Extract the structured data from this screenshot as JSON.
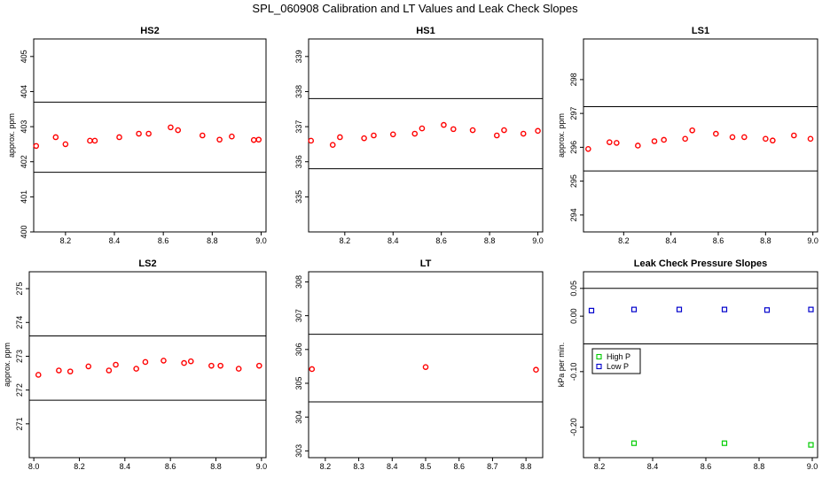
{
  "title": "SPL_060908  Calibration and LT Values and Leak Check Slopes",
  "chart_data": [
    {
      "type": "scatter",
      "title": "HS2",
      "ylabel": "approx. ppm",
      "xlim": [
        8.07,
        9.02
      ],
      "ylim": [
        400,
        405.5
      ],
      "xticks": [
        8.2,
        8.4,
        8.6,
        8.8,
        9.0
      ],
      "xtick_labels": [
        "8.2",
        "8.4",
        "8.6",
        "8.8",
        "9.0"
      ],
      "yticks": [
        400,
        401,
        402,
        403,
        404,
        405
      ],
      "ytick_labels": [
        "400",
        "401",
        "402",
        "403",
        "404",
        "405"
      ],
      "hlines": [
        403.7,
        401.7
      ],
      "series": [
        {
          "color": "#ff0000",
          "marker": "circle",
          "x": [
            8.08,
            8.16,
            8.2,
            8.3,
            8.32,
            8.42,
            8.5,
            8.54,
            8.63,
            8.66,
            8.76,
            8.83,
            8.88,
            8.97,
            8.99
          ],
          "y": [
            402.45,
            402.7,
            402.5,
            402.6,
            402.6,
            402.7,
            402.8,
            402.8,
            402.98,
            402.9,
            402.75,
            402.63,
            402.72,
            402.62,
            402.63
          ]
        }
      ]
    },
    {
      "type": "scatter",
      "title": "HS1",
      "ylabel": "",
      "xlim": [
        8.05,
        9.02
      ],
      "ylim": [
        334,
        339.5
      ],
      "xticks": [
        8.2,
        8.4,
        8.6,
        8.8,
        9.0
      ],
      "xtick_labels": [
        "8.2",
        "8.4",
        "8.6",
        "8.8",
        "9.0"
      ],
      "yticks": [
        335,
        336,
        337,
        338,
        339
      ],
      "ytick_labels": [
        "335",
        "336",
        "337",
        "338",
        "339"
      ],
      "hlines": [
        337.8,
        335.8
      ],
      "series": [
        {
          "color": "#ff0000",
          "marker": "circle",
          "x": [
            8.06,
            8.15,
            8.18,
            8.28,
            8.32,
            8.4,
            8.49,
            8.52,
            8.61,
            8.65,
            8.73,
            8.83,
            8.86,
            8.94,
            9.0
          ],
          "y": [
            336.6,
            336.48,
            336.7,
            336.67,
            336.75,
            336.78,
            336.8,
            336.95,
            337.05,
            336.93,
            336.9,
            336.75,
            336.9,
            336.8,
            336.88
          ]
        }
      ]
    },
    {
      "type": "scatter",
      "title": "LS1",
      "ylabel": "approx. ppm",
      "xlim": [
        8.03,
        9.02
      ],
      "ylim": [
        293.5,
        299.2
      ],
      "xticks": [
        8.2,
        8.4,
        8.6,
        8.8,
        9.0
      ],
      "xtick_labels": [
        "8.2",
        "8.4",
        "8.6",
        "8.8",
        "9.0"
      ],
      "yticks": [
        294,
        295,
        296,
        297,
        298
      ],
      "ytick_labels": [
        "294",
        "295",
        "296",
        "297",
        "298"
      ],
      "hlines": [
        297.2,
        295.3
      ],
      "series": [
        {
          "color": "#ff0000",
          "marker": "circle",
          "x": [
            8.05,
            8.14,
            8.17,
            8.26,
            8.33,
            8.37,
            8.46,
            8.49,
            8.59,
            8.66,
            8.71,
            8.8,
            8.83,
            8.92,
            8.99
          ],
          "y": [
            295.95,
            296.15,
            296.13,
            296.05,
            296.18,
            296.22,
            296.25,
            296.5,
            296.4,
            296.3,
            296.3,
            296.25,
            296.2,
            296.35,
            296.25
          ]
        }
      ]
    },
    {
      "type": "scatter",
      "title": "LS2",
      "ylabel": "approx. ppm",
      "xlim": [
        7.98,
        9.02
      ],
      "ylim": [
        270,
        275.5
      ],
      "xticks": [
        8.0,
        8.2,
        8.4,
        8.6,
        8.8,
        9.0
      ],
      "xtick_labels": [
        "8.0",
        "8.2",
        "8.4",
        "8.6",
        "8.8",
        "9.0"
      ],
      "yticks": [
        271,
        272,
        273,
        274,
        275
      ],
      "ytick_labels": [
        "271",
        "272",
        "273",
        "274",
        "275"
      ],
      "hlines": [
        273.6,
        271.7
      ],
      "series": [
        {
          "color": "#ff0000",
          "marker": "circle",
          "x": [
            8.02,
            8.11,
            8.16,
            8.24,
            8.33,
            8.36,
            8.45,
            8.49,
            8.57,
            8.66,
            8.69,
            8.78,
            8.82,
            8.9,
            8.99
          ],
          "y": [
            272.45,
            272.58,
            272.55,
            272.7,
            272.58,
            272.75,
            272.63,
            272.83,
            272.87,
            272.8,
            272.85,
            272.72,
            272.72,
            272.63,
            272.72
          ]
        }
      ]
    },
    {
      "type": "scatter",
      "title": "LT",
      "ylabel": "",
      "xlim": [
        8.15,
        8.85
      ],
      "ylim": [
        302.8,
        308.3
      ],
      "xticks": [
        8.2,
        8.3,
        8.4,
        8.5,
        8.6,
        8.7,
        8.8
      ],
      "xtick_labels": [
        "8.2",
        "8.3",
        "8.4",
        "8.5",
        "8.6",
        "8.7",
        "8.8"
      ],
      "yticks": [
        303,
        304,
        305,
        306,
        307,
        308
      ],
      "ytick_labels": [
        "303",
        "304",
        "305",
        "306",
        "307",
        "308"
      ],
      "hlines": [
        306.45,
        304.45
      ],
      "series": [
        {
          "color": "#ff0000",
          "marker": "circle",
          "x": [
            8.16,
            8.5,
            8.83
          ],
          "y": [
            305.42,
            305.48,
            305.4
          ]
        }
      ]
    },
    {
      "type": "scatter",
      "title": "Leak Check Pressure Slopes",
      "ylabel": "kPa per min.",
      "xlim": [
        8.14,
        9.02
      ],
      "ylim": [
        -0.255,
        0.08
      ],
      "xticks": [
        8.2,
        8.4,
        8.6,
        8.8,
        9.0
      ],
      "xtick_labels": [
        "8.2",
        "8.4",
        "8.6",
        "8.8",
        "9.0"
      ],
      "yticks": [
        0.05,
        0.0,
        -0.1,
        -0.2
      ],
      "ytick_labels": [
        "0.05",
        "0.00",
        "-0.10",
        "-0.20"
      ],
      "hlines": [
        0.05,
        -0.05
      ],
      "legend": {
        "position": "left",
        "entries": [
          "High P",
          "Low P"
        ]
      },
      "series": [
        {
          "name": "High P",
          "color": "#00cc00",
          "marker": "square",
          "x": [
            8.33,
            8.67,
            8.995
          ],
          "y": [
            -0.229,
            -0.229,
            -0.232
          ]
        },
        {
          "name": "Low P",
          "color": "#0000cc",
          "marker": "square",
          "x": [
            8.17,
            8.33,
            8.5,
            8.67,
            8.83,
            8.995
          ],
          "y": [
            0.01,
            0.012,
            0.012,
            0.012,
            0.011,
            0.012
          ]
        }
      ]
    }
  ]
}
